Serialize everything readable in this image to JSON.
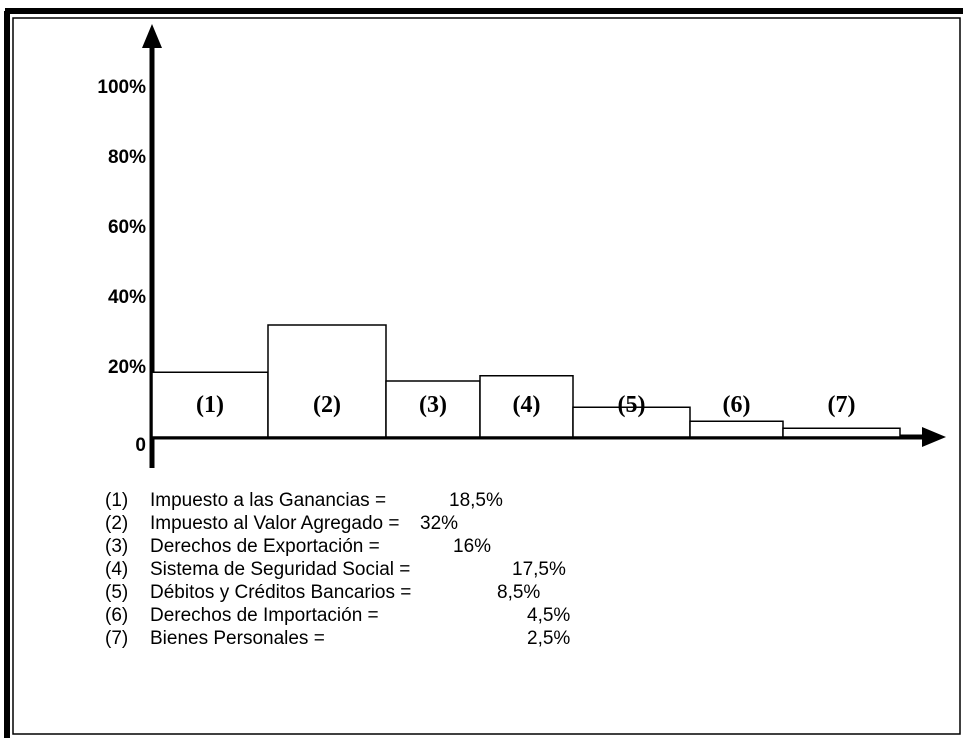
{
  "chart_data": {
    "type": "bar",
    "categories": [
      "(1)",
      "(2)",
      "(3)",
      "(4)",
      "(5)",
      "(6)",
      "(7)"
    ],
    "descriptions": [
      "Impuesto a las Ganancias =",
      "Impuesto al Valor Agregado =",
      "Derechos de Exportación =",
      "Sistema de Seguridad Social =",
      "Débitos y Créditos Bancarios =",
      "Derechos de Importación =",
      "Bienes Personales ="
    ],
    "values": [
      18.5,
      32,
      16,
      17.5,
      8.5,
      4.5,
      2.5
    ],
    "value_labels": [
      "18,5%",
      "32%",
      "16%",
      "17,5%",
      "8,5%",
      "4,5%",
      "2,5%"
    ],
    "color": "#ffffff",
    "ylim": [
      0,
      100
    ],
    "yticks": [
      0,
      {
        "value": 20,
        "label": "20%"
      },
      {
        "value": 40,
        "label": "40%"
      },
      {
        "value": 60,
        "label": "60%"
      },
      {
        "value": 80,
        "label": "80%"
      },
      {
        "value": 100,
        "label": "100%"
      }
    ]
  }
}
